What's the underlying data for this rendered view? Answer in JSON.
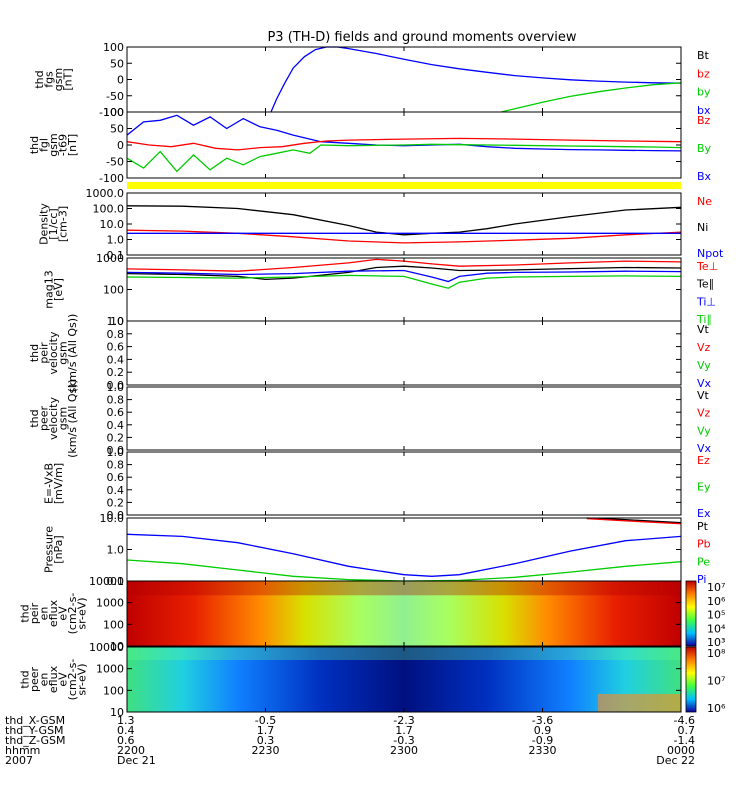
{
  "title": "P3 (TH-D) fields and ground moments overview",
  "colors": {
    "black": "#000000",
    "red": "#ff0000",
    "green": "#00cc00",
    "blue": "#0000ff",
    "yellow": "#ffff00"
  },
  "chart_data": {
    "type": "line",
    "time_range": [
      "2007-12-21 22:00",
      "2007-12-22 00:00"
    ],
    "panels": [
      {
        "id": "fgs",
        "ylabel": [
          "thd",
          "fgs",
          "gsm",
          "[nT]"
        ],
        "yticks": [
          "100",
          "50",
          "0",
          "-50",
          "-100"
        ],
        "ylim": [
          -100,
          100
        ],
        "scale": "linear",
        "legend": [
          {
            "label": "Bt",
            "color": "#000000"
          },
          {
            "label": "bz",
            "color": "#ff0000"
          },
          {
            "label": "by",
            "color": "#00cc00"
          },
          {
            "label": "bx",
            "color": "#0000ff"
          }
        ],
        "series": [
          {
            "name": "bx",
            "color": "#0000ff",
            "x": [
              0.26,
              0.27,
              0.285,
              0.3,
              0.32,
              0.34,
              0.36,
              0.38,
              0.4,
              0.45,
              0.5,
              0.55,
              0.6,
              0.65,
              0.7,
              0.75,
              0.8,
              0.85,
              0.9,
              0.95,
              1.0
            ],
            "y": [
              -100,
              -60,
              -10,
              35,
              70,
              92,
              101,
              100,
              95,
              80,
              62,
              46,
              33,
              22,
              12,
              5,
              -1,
              -5,
              -8,
              -10,
              -11
            ]
          },
          {
            "name": "by",
            "color": "#00cc00",
            "x": [
              0.675,
              0.7,
              0.75,
              0.8,
              0.85,
              0.9,
              0.95,
              1.0
            ],
            "y": [
              -100,
              -90,
              -70,
              -52,
              -38,
              -26,
              -16,
              -10
            ]
          }
        ]
      },
      {
        "id": "fgl",
        "ylabel": [
          "thd",
          "fgl",
          "gsm",
          "-t69",
          "[nT]"
        ],
        "yticks": [
          "100",
          "50",
          "0",
          "-50",
          "-100"
        ],
        "ylim": [
          -100,
          100
        ],
        "scale": "linear",
        "legend": [
          {
            "label": "Bz",
            "color": "#ff0000"
          },
          {
            "label": "By",
            "color": "#00cc00"
          },
          {
            "label": "Bx",
            "color": "#0000ff"
          }
        ],
        "series": [
          {
            "name": "Bx",
            "color": "#0000ff",
            "x": [
              0.0,
              0.03,
              0.06,
              0.09,
              0.12,
              0.15,
              0.18,
              0.21,
              0.24,
              0.27,
              0.3,
              0.35,
              0.4,
              0.45,
              0.5,
              0.55,
              0.6,
              0.65,
              0.7,
              0.75,
              0.8,
              0.85,
              0.9,
              0.95,
              1.0
            ],
            "y": [
              30,
              70,
              75,
              90,
              60,
              85,
              50,
              80,
              55,
              45,
              30,
              10,
              5,
              0,
              -2,
              0,
              2,
              -5,
              -10,
              -12,
              -14,
              -15,
              -16,
              -17,
              -18
            ]
          },
          {
            "name": "By",
            "color": "#00cc00",
            "x": [
              0.0,
              0.03,
              0.06,
              0.09,
              0.12,
              0.15,
              0.18,
              0.21,
              0.24,
              0.27,
              0.3,
              0.33,
              0.35,
              0.4,
              0.45,
              0.5,
              0.55,
              0.6,
              0.65,
              0.7,
              0.75,
              0.8,
              0.85,
              0.9,
              0.95,
              1.0
            ],
            "y": [
              -40,
              -70,
              -20,
              -80,
              -30,
              -75,
              -40,
              -60,
              -35,
              -25,
              -15,
              -25,
              0,
              -2,
              -1,
              0,
              2,
              1,
              0,
              -1,
              -2,
              -3,
              -4,
              -5,
              -6,
              -8
            ]
          },
          {
            "name": "Bz",
            "color": "#ff0000",
            "x": [
              0.0,
              0.04,
              0.08,
              0.12,
              0.16,
              0.2,
              0.24,
              0.28,
              0.32,
              0.36,
              0.4,
              0.5,
              0.6,
              0.7,
              0.8,
              0.9,
              1.0
            ],
            "y": [
              10,
              0,
              -5,
              5,
              -10,
              -15,
              -8,
              -5,
              5,
              12,
              15,
              18,
              20,
              18,
              15,
              12,
              10
            ]
          }
        ]
      },
      {
        "id": "density",
        "ylabel": [
          "Density",
          "[1/cc]",
          "[cm-3]"
        ],
        "yticks": [
          "1000.0",
          "100.0",
          "10.0",
          "1.0",
          "0.1"
        ],
        "ylim": [
          0.1,
          1000
        ],
        "scale": "log",
        "legend": [
          {
            "label": "Ne",
            "color": "#ff0000"
          },
          {
            "label": "Ni",
            "color": "#000000"
          },
          {
            "label": "Npot",
            "color": "#0000ff"
          }
        ],
        "series": [
          {
            "name": "Ni",
            "color": "#000000",
            "x": [
              0.0,
              0.1,
              0.2,
              0.3,
              0.4,
              0.45,
              0.5,
              0.55,
              0.6,
              0.65,
              0.7,
              0.8,
              0.9,
              1.0
            ],
            "y": [
              150,
              140,
              100,
              40,
              8,
              3,
              2,
              2.5,
              3,
              5,
              10,
              30,
              80,
              120
            ]
          },
          {
            "name": "Ne",
            "color": "#ff0000",
            "x": [
              0.0,
              0.1,
              0.2,
              0.3,
              0.4,
              0.5,
              0.6,
              0.7,
              0.8,
              0.9,
              1.0
            ],
            "y": [
              4,
              3.5,
              2.5,
              1.5,
              0.8,
              0.6,
              0.7,
              0.9,
              1.2,
              2,
              3
            ]
          },
          {
            "name": "Npot",
            "color": "#0000ff",
            "x": [
              0.0,
              1.0
            ],
            "y": [
              2.5,
              2.5
            ]
          }
        ]
      },
      {
        "id": "temperature",
        "ylabel": [
          "mag13",
          "[eV]"
        ],
        "yticks": [
          "1000",
          "100",
          "10"
        ],
        "ylim": [
          10,
          1000
        ],
        "scale": "log",
        "legend": [
          {
            "label": "Te⊥",
            "color": "#ff0000"
          },
          {
            "label": "Te∥",
            "color": "#000000"
          },
          {
            "label": "Ti⊥",
            "color": "#0000ff"
          },
          {
            "label": "Ti∥",
            "color": "#00cc00"
          }
        ],
        "series": [
          {
            "name": "Te⊥",
            "color": "#ff0000",
            "x": [
              0.0,
              0.1,
              0.2,
              0.3,
              0.4,
              0.45,
              0.5,
              0.55,
              0.6,
              0.7,
              0.8,
              0.9,
              1.0
            ],
            "y": [
              450,
              420,
              380,
              500,
              700,
              900,
              800,
              650,
              550,
              600,
              700,
              800,
              750
            ]
          },
          {
            "name": "Te∥",
            "color": "#000000",
            "x": [
              0.0,
              0.1,
              0.2,
              0.25,
              0.3,
              0.4,
              0.45,
              0.5,
              0.55,
              0.6,
              0.7,
              0.8,
              0.9,
              1.0
            ],
            "y": [
              320,
              300,
              260,
              210,
              230,
              350,
              500,
              550,
              480,
              400,
              420,
              460,
              500,
              480
            ]
          },
          {
            "name": "Ti⊥",
            "color": "#0000ff",
            "x": [
              0.0,
              0.1,
              0.2,
              0.3,
              0.4,
              0.5,
              0.55,
              0.58,
              0.6,
              0.65,
              0.7,
              0.8,
              0.9,
              1.0
            ],
            "y": [
              350,
              330,
              300,
              320,
              380,
              400,
              250,
              180,
              260,
              330,
              350,
              360,
              380,
              370
            ]
          },
          {
            "name": "Ti∥",
            "color": "#00cc00",
            "x": [
              0.0,
              0.1,
              0.2,
              0.3,
              0.4,
              0.5,
              0.55,
              0.58,
              0.6,
              0.65,
              0.7,
              0.8,
              0.9,
              1.0
            ],
            "y": [
              250,
              240,
              230,
              250,
              280,
              260,
              150,
              110,
              170,
              230,
              250,
              260,
              270,
              260
            ]
          }
        ]
      },
      {
        "id": "vi",
        "ylabel": [
          "thd",
          "peir",
          "velocity",
          "gsm",
          "(km/s (All Qs))"
        ],
        "yticks": [
          "1.0",
          "0.8",
          "0.6",
          "0.4",
          "0.2",
          "0.0"
        ],
        "ylim": [
          0,
          1
        ],
        "scale": "linear",
        "legend": [
          {
            "label": "Vt",
            "color": "#000000"
          },
          {
            "label": "Vz",
            "color": "#ff0000"
          },
          {
            "label": "Vy",
            "color": "#00cc00"
          },
          {
            "label": "Vx",
            "color": "#0000ff"
          }
        ],
        "series": []
      },
      {
        "id": "ve",
        "ylabel": [
          "thd",
          "peer",
          "velocity",
          "gsm",
          "(km/s (All Qs))"
        ],
        "yticks": [
          "1.0",
          "0.8",
          "0.6",
          "0.4",
          "0.2",
          "0.0"
        ],
        "ylim": [
          0,
          1
        ],
        "scale": "linear",
        "legend": [
          {
            "label": "Vt",
            "color": "#000000"
          },
          {
            "label": "Vz",
            "color": "#ff0000"
          },
          {
            "label": "Vy",
            "color": "#00cc00"
          },
          {
            "label": "Vx",
            "color": "#0000ff"
          }
        ],
        "series": []
      },
      {
        "id": "efield",
        "ylabel": [
          "E=-VxB",
          "[mV/m]"
        ],
        "yticks": [
          "1.0",
          "0.8",
          "0.6",
          "0.4",
          "0.2",
          "0.0"
        ],
        "ylim": [
          0,
          1
        ],
        "scale": "linear",
        "legend": [
          {
            "label": "Ez",
            "color": "#ff0000"
          },
          {
            "label": "Ey",
            "color": "#00cc00"
          },
          {
            "label": "Ex",
            "color": "#0000ff"
          }
        ],
        "series": []
      },
      {
        "id": "pressure",
        "ylabel": [
          "Pressure",
          "[nPa]"
        ],
        "yticks": [
          "10.0",
          "1.0",
          "0.1"
        ],
        "ylim": [
          0.03,
          30
        ],
        "scale": "log",
        "legend": [
          {
            "label": "Pt",
            "color": "#000000"
          },
          {
            "label": "Pb",
            "color": "#ff0000"
          },
          {
            "label": "Pe",
            "color": "#00cc00"
          },
          {
            "label": "Pi",
            "color": "#0000ff"
          }
        ],
        "series": [
          {
            "name": "Pi",
            "color": "#0000ff",
            "x": [
              0.0,
              0.1,
              0.2,
              0.3,
              0.4,
              0.5,
              0.55,
              0.6,
              0.7,
              0.8,
              0.9,
              1.0
            ],
            "y": [
              5,
              4,
              2,
              0.6,
              0.15,
              0.06,
              0.05,
              0.06,
              0.2,
              0.8,
              2.5,
              4
            ]
          },
          {
            "name": "Pe",
            "color": "#00cc00",
            "x": [
              0.0,
              0.1,
              0.2,
              0.3,
              0.4,
              0.5,
              0.6,
              0.7,
              0.8,
              0.9,
              1.0
            ],
            "y": [
              0.3,
              0.2,
              0.1,
              0.05,
              0.035,
              0.03,
              0.032,
              0.045,
              0.08,
              0.15,
              0.25
            ]
          },
          {
            "name": "Pt",
            "color": "#000000",
            "x": [
              0.83,
              0.9,
              1.0
            ],
            "y": [
              30,
              25,
              18
            ]
          },
          {
            "name": "Pb",
            "color": "#ff0000",
            "x": [
              0.83,
              0.9,
              1.0
            ],
            "y": [
              28,
              22,
              16
            ]
          }
        ]
      },
      {
        "id": "ion_spec",
        "type": "heatmap",
        "ylabel": [
          "thd",
          "peir",
          "en",
          "eflux",
          "eV",
          "(cm2-s-",
          "sr-eV)"
        ],
        "yticks": [
          "10000",
          "1000",
          "100",
          "10"
        ],
        "colorbar_ticks": [
          "10⁷",
          "10⁶",
          "10⁵",
          "10⁴",
          "10³"
        ]
      },
      {
        "id": "elec_spec",
        "type": "heatmap",
        "ylabel": [
          "thd",
          "peer",
          "en",
          "eflux",
          "eV",
          "(cm2-s-",
          "sr-eV)"
        ],
        "yticks": [
          "10000",
          "1000",
          "100",
          "10"
        ],
        "colorbar_ticks": [
          "10⁸",
          "10⁷",
          "10⁶"
        ]
      }
    ],
    "x_axis": {
      "row_labels": [
        "thd_X-GSM",
        "thd_Y-GSM",
        "thd_Z-GSM",
        "hhmm",
        "2007"
      ],
      "columns": [
        [
          "1.3",
          "0.4",
          "0.6",
          "2200",
          "Dec 21"
        ],
        [
          "-0.5",
          "1.7",
          "0.3",
          "2230",
          ""
        ],
        [
          "-2.3",
          "1.7",
          "-0.3",
          "2300",
          ""
        ],
        [
          "-3.6",
          "0.9",
          "-0.9",
          "2330",
          ""
        ],
        [
          "-4.6",
          "0.7",
          "-1.4",
          "0000",
          "Dec 22"
        ]
      ]
    }
  }
}
